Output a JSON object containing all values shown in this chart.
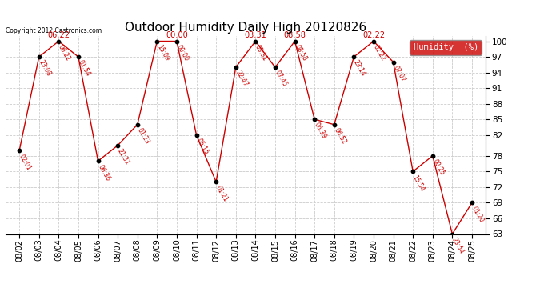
{
  "title": "Outdoor Humidity Daily High 20120826",
  "copyright": "Copyright 2012 Castronics.com",
  "background_color": "#ffffff",
  "plot_bg_color": "#ffffff",
  "grid_color": "#cccccc",
  "line_color": "#cc0000",
  "marker_color": "#000000",
  "label_color": "#cc0000",
  "ylim_low": 63,
  "ylim_high": 101,
  "yticks": [
    63,
    66,
    69,
    72,
    75,
    78,
    82,
    85,
    88,
    91,
    94,
    97,
    100
  ],
  "dates": [
    "08/02",
    "08/03",
    "08/04",
    "08/05",
    "08/06",
    "08/07",
    "08/08",
    "08/09",
    "08/10",
    "08/11",
    "08/12",
    "08/13",
    "08/14",
    "08/15",
    "08/16",
    "08/17",
    "08/18",
    "08/19",
    "08/20",
    "08/21",
    "08/22",
    "08/23",
    "08/24",
    "08/25"
  ],
  "values": [
    79,
    97,
    100,
    97,
    77,
    80,
    84,
    100,
    100,
    82,
    73,
    95,
    100,
    95,
    100,
    85,
    84,
    97,
    100,
    96,
    75,
    78,
    63,
    69
  ],
  "point_labels": [
    "02:01",
    "23:08",
    "06:22",
    "01:54",
    "06:36",
    "21:31",
    "01:23",
    "15:09",
    "00:00",
    "05:15",
    "01:21",
    "22:47",
    "03:31",
    "07:45",
    "08:58",
    "06:39",
    "06:52",
    "23:14",
    "02:22",
    "07:07",
    "15:54",
    "00:25",
    "23:54",
    "01:20"
  ],
  "top_labels": [
    {
      "xi": 2,
      "label": "06:22"
    },
    {
      "xi": 8,
      "label": "00:00"
    },
    {
      "xi": 12,
      "label": "03:31"
    },
    {
      "xi": 14,
      "label": "08:58"
    },
    {
      "xi": 18,
      "label": "02:22"
    }
  ],
  "legend_label": "Humidity  (%)",
  "legend_bg": "#cc0000",
  "legend_text_color": "#ffffff"
}
